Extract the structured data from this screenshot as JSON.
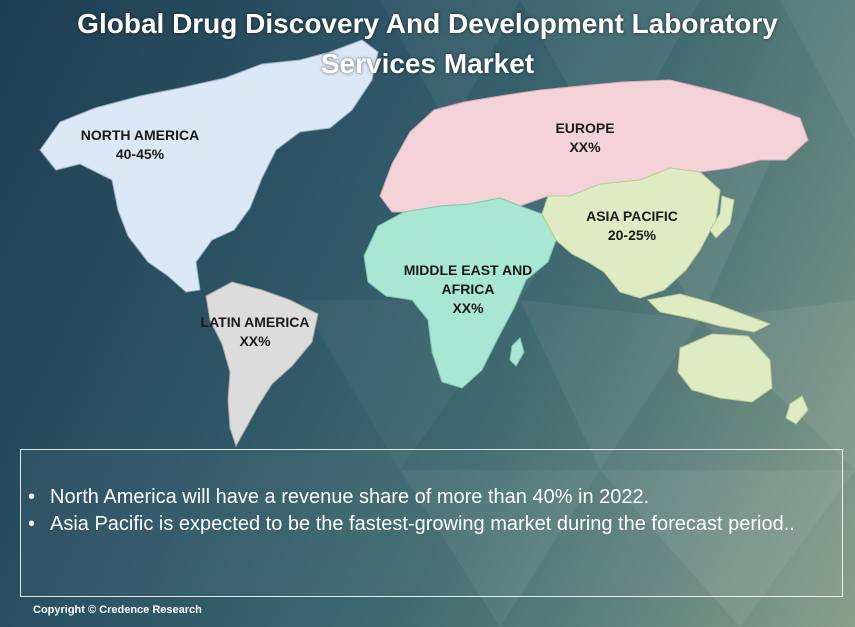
{
  "title": "Global Drug Discovery And Development Laboratory Services Market",
  "regions": [
    {
      "name": "NORTH AMERICA",
      "value": "40-45%",
      "color": "#dbe8f5"
    },
    {
      "name": "EUROPE",
      "value": "XX%",
      "color": "#f3d3d8"
    },
    {
      "name": "ASIA PACIFIC",
      "value": "20-25%",
      "color": "#dfecc3"
    },
    {
      "name": "MIDDLE EAST AND AFRICA",
      "value": "XX%",
      "color": "#a9e6d3"
    },
    {
      "name": "LATIN AMERICA",
      "value": "XX%",
      "color": "#dcdcdc"
    }
  ],
  "bullets": [
    "North America will have a revenue share of more than 40% in 2022.",
    "Asia Pacific is expected to be the fastest-growing market during the forecast period.."
  ],
  "bullet_symbol": "•",
  "copyright": "Copyright © Credence Research"
}
